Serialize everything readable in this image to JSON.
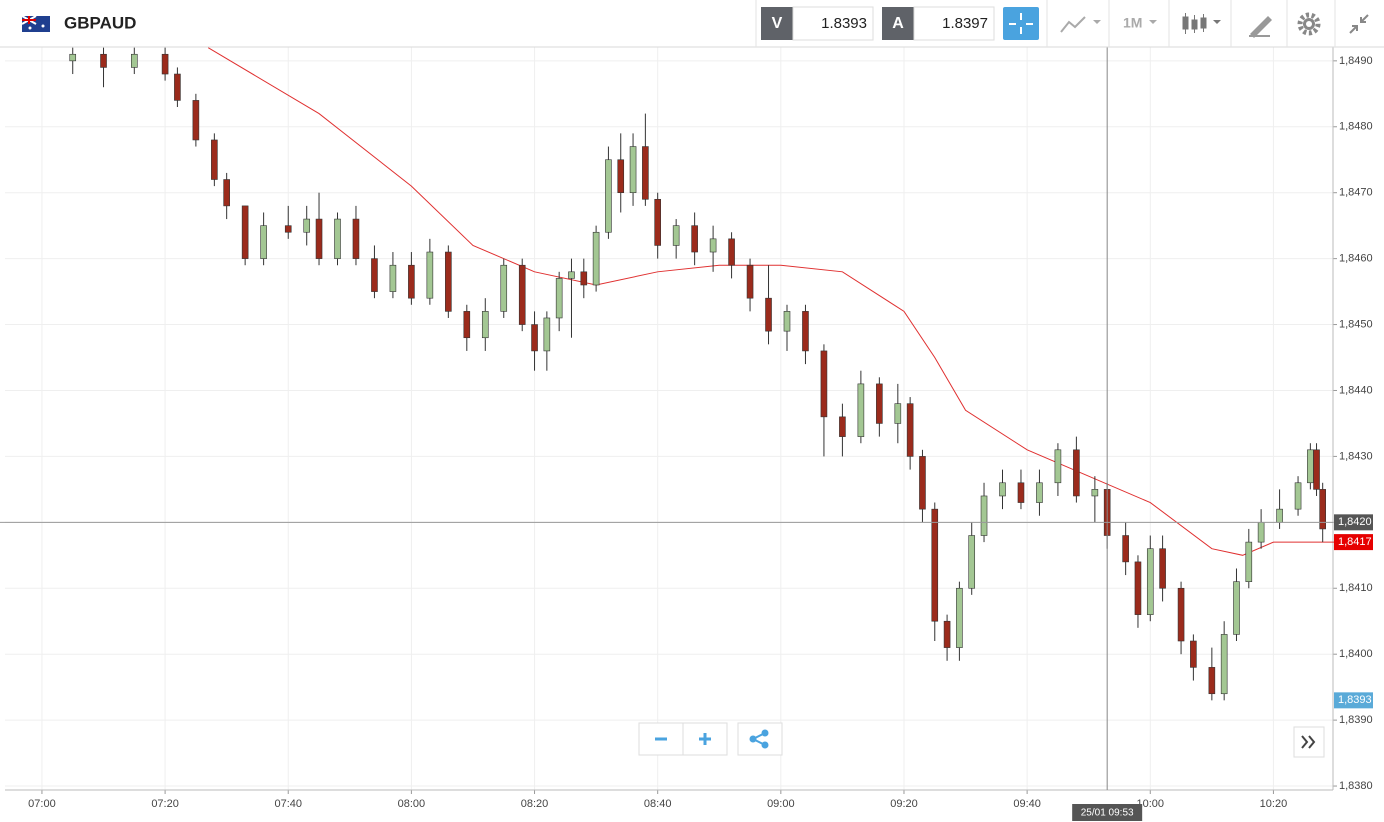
{
  "header": {
    "symbol": "GBPAUD",
    "bid_label": "V",
    "bid": 1.8393,
    "ask_label": "A",
    "ask": 1.8397,
    "timeframe": "1M"
  },
  "chart_data": {
    "type": "candlestick",
    "x": [
      "07:05",
      "07:10",
      "07:15",
      "07:20",
      "07:22",
      "07:25",
      "07:28",
      "07:30",
      "07:33",
      "07:36",
      "07:40",
      "07:43",
      "07:45",
      "07:48",
      "07:51",
      "07:54",
      "07:57",
      "08:00",
      "08:03",
      "08:06",
      "08:09",
      "08:12",
      "08:15",
      "08:18",
      "08:20",
      "08:22",
      "08:24",
      "08:26",
      "08:28",
      "08:30",
      "08:32",
      "08:34",
      "08:36",
      "08:38",
      "08:40",
      "08:43",
      "08:46",
      "08:49",
      "08:52",
      "08:55",
      "08:58",
      "09:01",
      "09:04",
      "09:07",
      "09:10",
      "09:13",
      "09:16",
      "09:19",
      "09:21",
      "09:23",
      "09:25",
      "09:27",
      "09:29",
      "09:31",
      "09:33",
      "09:36",
      "09:39",
      "09:42",
      "09:45",
      "09:48",
      "09:51",
      "09:53",
      "09:56",
      "09:58",
      "10:00",
      "10:02",
      "10:05",
      "10:07",
      "10:10",
      "10:12",
      "10:14",
      "10:16",
      "10:18",
      "10:21",
      "10:24",
      "10:26",
      "10:27",
      "10:28"
    ],
    "open": [
      1.849,
      1.8491,
      1.8489,
      1.8491,
      1.8488,
      1.8484,
      1.8478,
      1.8472,
      1.8468,
      1.846,
      1.8465,
      1.8464,
      1.8466,
      1.846,
      1.8466,
      1.846,
      1.8455,
      1.8459,
      1.8454,
      1.8461,
      1.8452,
      1.8448,
      1.8452,
      1.8459,
      1.845,
      1.8446,
      1.8451,
      1.8457,
      1.8458,
      1.8456,
      1.8464,
      1.8475,
      1.847,
      1.8477,
      1.8469,
      1.8462,
      1.8465,
      1.8461,
      1.8463,
      1.8459,
      1.8454,
      1.8449,
      1.8452,
      1.8446,
      1.8436,
      1.8433,
      1.8441,
      1.8435,
      1.8438,
      1.843,
      1.8422,
      1.8405,
      1.8401,
      1.841,
      1.8418,
      1.8424,
      1.8426,
      1.8423,
      1.8426,
      1.8431,
      1.8424,
      1.8425,
      1.8418,
      1.8414,
      1.8406,
      1.8416,
      1.841,
      1.8402,
      1.8398,
      1.8394,
      1.8403,
      1.8411,
      1.8417,
      1.842,
      1.8422,
      1.8426,
      1.8431,
      1.8425
    ],
    "high": [
      1.8492,
      1.8492,
      1.8492,
      1.8492,
      1.8489,
      1.8485,
      1.8479,
      1.8473,
      1.8468,
      1.8467,
      1.8468,
      1.8468,
      1.847,
      1.8467,
      1.8468,
      1.8462,
      1.8461,
      1.8461,
      1.8463,
      1.8462,
      1.8453,
      1.8454,
      1.846,
      1.846,
      1.8452,
      1.8452,
      1.8458,
      1.846,
      1.846,
      1.8465,
      1.8477,
      1.8479,
      1.8479,
      1.8482,
      1.847,
      1.8466,
      1.8467,
      1.8465,
      1.8464,
      1.846,
      1.8459,
      1.8453,
      1.8453,
      1.8447,
      1.8438,
      1.8443,
      1.8442,
      1.8441,
      1.8439,
      1.8431,
      1.8423,
      1.8406,
      1.8411,
      1.842,
      1.8426,
      1.8428,
      1.8428,
      1.8428,
      1.8432,
      1.8433,
      1.8427,
      1.8426,
      1.842,
      1.8415,
      1.8418,
      1.8418,
      1.8411,
      1.8403,
      1.8401,
      1.8405,
      1.8413,
      1.8419,
      1.8422,
      1.8425,
      1.8427,
      1.8432,
      1.8432,
      1.8426
    ],
    "low": [
      1.8488,
      1.8486,
      1.8488,
      1.8487,
      1.8483,
      1.8477,
      1.8471,
      1.8466,
      1.8459,
      1.8459,
      1.8463,
      1.8462,
      1.8459,
      1.8459,
      1.8459,
      1.8454,
      1.8454,
      1.8453,
      1.8453,
      1.8451,
      1.8446,
      1.8446,
      1.8451,
      1.8449,
      1.8443,
      1.8443,
      1.8449,
      1.8448,
      1.8454,
      1.8455,
      1.8463,
      1.8467,
      1.8468,
      1.8468,
      1.846,
      1.846,
      1.8459,
      1.8458,
      1.8457,
      1.8452,
      1.8447,
      1.8446,
      1.8444,
      1.843,
      1.843,
      1.8432,
      1.8433,
      1.8432,
      1.8428,
      1.842,
      1.8402,
      1.8399,
      1.8399,
      1.8409,
      1.8417,
      1.8422,
      1.8422,
      1.8421,
      1.8424,
      1.8423,
      1.842,
      1.8416,
      1.8412,
      1.8404,
      1.8405,
      1.8408,
      1.84,
      1.8396,
      1.8393,
      1.8393,
      1.8402,
      1.841,
      1.8416,
      1.8419,
      1.8421,
      1.8425,
      1.8424,
      1.8417
    ],
    "close": [
      1.8491,
      1.8489,
      1.8491,
      1.8488,
      1.8484,
      1.8478,
      1.8472,
      1.8468,
      1.846,
      1.8465,
      1.8464,
      1.8466,
      1.846,
      1.8466,
      1.846,
      1.8455,
      1.8459,
      1.8454,
      1.8461,
      1.8452,
      1.8448,
      1.8452,
      1.8459,
      1.845,
      1.8446,
      1.8451,
      1.8457,
      1.8458,
      1.8456,
      1.8464,
      1.8475,
      1.847,
      1.8477,
      1.8469,
      1.8462,
      1.8465,
      1.8461,
      1.8463,
      1.8459,
      1.8454,
      1.8449,
      1.8452,
      1.8446,
      1.8436,
      1.8433,
      1.8441,
      1.8435,
      1.8438,
      1.843,
      1.8422,
      1.8405,
      1.8401,
      1.841,
      1.8418,
      1.8424,
      1.8426,
      1.8423,
      1.8426,
      1.8431,
      1.8424,
      1.8425,
      1.8418,
      1.8414,
      1.8406,
      1.8416,
      1.841,
      1.8402,
      1.8398,
      1.8394,
      1.8403,
      1.8411,
      1.8417,
      1.842,
      1.8422,
      1.8426,
      1.8431,
      1.8425,
      1.8419
    ],
    "up_color": "#a3c793",
    "down_color": "#9b2b1c",
    "moving_average": {
      "color": "#e03030",
      "x": [
        "07:27",
        "07:45",
        "08:00",
        "08:10",
        "08:20",
        "08:30",
        "08:40",
        "08:50",
        "09:00",
        "09:10",
        "09:20",
        "09:25",
        "09:30",
        "09:40",
        "09:50",
        "10:00",
        "10:10",
        "10:15",
        "10:20",
        "10:30"
      ],
      "values": [
        1.8492,
        1.8482,
        1.8471,
        1.8462,
        1.8458,
        1.8456,
        1.8458,
        1.8459,
        1.8459,
        1.8458,
        1.8452,
        1.8445,
        1.8437,
        1.8431,
        1.8427,
        1.8423,
        1.8416,
        1.8415,
        1.8417,
        1.8417
      ]
    },
    "xlim": [
      "06:54",
      "10:30"
    ],
    "xticks": [
      "07:00",
      "07:20",
      "07:40",
      "08:00",
      "08:20",
      "08:40",
      "09:00",
      "09:20",
      "09:40",
      "10:00",
      "10:20"
    ],
    "ylim": [
      1.83794,
      1.84921
    ],
    "yticks": [
      {
        "value": 1.838,
        "label": "1,8380"
      },
      {
        "value": 1.839,
        "label": "1,8390"
      },
      {
        "value": 1.84,
        "label": "1,8400"
      },
      {
        "value": 1.841,
        "label": "1,8410"
      },
      {
        "value": 1.842,
        "label": "1,8420"
      },
      {
        "value": 1.843,
        "label": "1,8430"
      },
      {
        "value": 1.844,
        "label": "1,8440"
      },
      {
        "value": 1.845,
        "label": "1,8450"
      },
      {
        "value": 1.846,
        "label": "1,8460"
      },
      {
        "value": 1.847,
        "label": "1,8470"
      },
      {
        "value": 1.848,
        "label": "1,8480"
      },
      {
        "value": 1.849,
        "label": "1,8490"
      }
    ],
    "grid": true,
    "price_tags": [
      {
        "value": 1.842,
        "label": "1,8420",
        "color": "#555555"
      },
      {
        "value": 1.8417,
        "label": "1,8417",
        "color": "#e60000"
      },
      {
        "value": 1.8393,
        "label": "1,8393",
        "color": "#5aaad8"
      }
    ],
    "crosshair": {
      "x": "09:53",
      "label": "25/01 09:53"
    }
  }
}
